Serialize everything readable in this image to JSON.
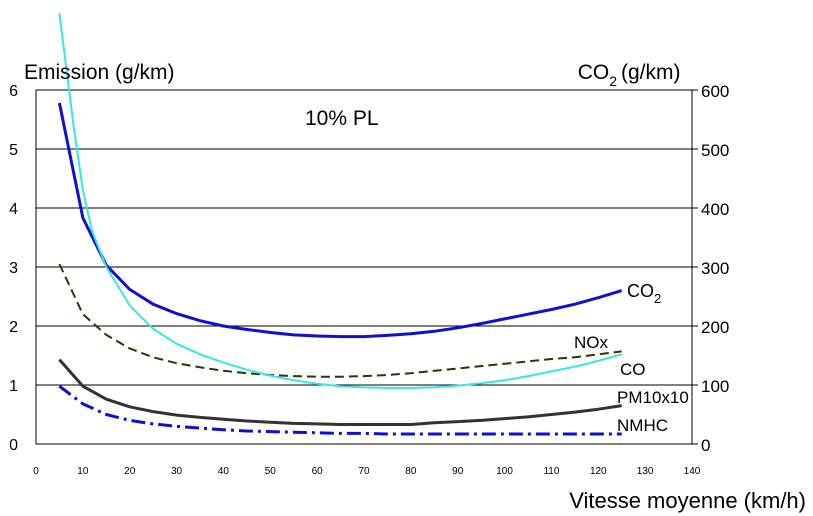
{
  "chart_data": {
    "type": "line",
    "title": "10% PL",
    "xlabel": "Vitesse moyenne (km/h)",
    "ylabel": "Emission (g/km)",
    "y2label_main": "CO",
    "y2label_sub": "2",
    "y2label_rest": "(g/km)",
    "xlim": [
      0,
      140
    ],
    "ylim": [
      0,
      6
    ],
    "y2lim": [
      0,
      600
    ],
    "xticks": [
      0,
      10,
      20,
      30,
      40,
      50,
      60,
      70,
      80,
      90,
      100,
      110,
      120,
      130,
      140
    ],
    "yticks": [
      0,
      1,
      2,
      3,
      4,
      5,
      6
    ],
    "y2ticks": [
      0,
      100,
      200,
      300,
      400,
      500,
      600
    ],
    "grid": "horizontal",
    "series": [
      {
        "name": "CO2",
        "axis": "y2",
        "color": "#1010d0",
        "dash": "solid",
        "x": [
          5,
          10,
          15,
          20,
          25,
          30,
          35,
          40,
          45,
          50,
          55,
          60,
          65,
          70,
          75,
          80,
          85,
          90,
          95,
          100,
          105,
          110,
          115,
          120,
          125
        ],
        "values": [
          578,
          383,
          303,
          262,
          237,
          221,
          209,
          200,
          194,
          189,
          185,
          183,
          182,
          182,
          184,
          187,
          191,
          197,
          204,
          212,
          220,
          228,
          237,
          248,
          260
        ]
      },
      {
        "name": "NOx",
        "axis": "y",
        "color": "#333300",
        "dash": "dashed",
        "x": [
          5,
          10,
          15,
          20,
          25,
          30,
          35,
          40,
          45,
          50,
          55,
          60,
          65,
          70,
          75,
          80,
          85,
          90,
          95,
          100,
          105,
          110,
          115,
          120,
          125
        ],
        "values": [
          3.05,
          2.2,
          1.85,
          1.62,
          1.47,
          1.37,
          1.3,
          1.24,
          1.2,
          1.17,
          1.15,
          1.14,
          1.14,
          1.15,
          1.17,
          1.2,
          1.24,
          1.28,
          1.32,
          1.36,
          1.4,
          1.44,
          1.47,
          1.52,
          1.57
        ]
      },
      {
        "name": "CO",
        "axis": "y",
        "color": "#33e8e8",
        "dash": "solid",
        "x": [
          5,
          8,
          10,
          12,
          15,
          20,
          25,
          30,
          35,
          40,
          45,
          50,
          55,
          60,
          65,
          70,
          75,
          80,
          85,
          90,
          95,
          100,
          105,
          110,
          115,
          120,
          125
        ],
        "values": [
          7.3,
          5.4,
          4.3,
          3.6,
          3.0,
          2.35,
          1.95,
          1.7,
          1.52,
          1.38,
          1.26,
          1.16,
          1.08,
          1.02,
          0.98,
          0.96,
          0.95,
          0.95,
          0.96,
          0.99,
          1.03,
          1.08,
          1.15,
          1.23,
          1.31,
          1.41,
          1.52
        ]
      },
      {
        "name": "PM10x10",
        "axis": "y",
        "color": "#333333",
        "dash": "solid",
        "x": [
          5,
          10,
          15,
          20,
          25,
          30,
          35,
          40,
          45,
          50,
          55,
          60,
          65,
          70,
          75,
          80,
          85,
          90,
          95,
          100,
          105,
          110,
          115,
          120,
          125
        ],
        "values": [
          1.43,
          0.98,
          0.76,
          0.63,
          0.55,
          0.49,
          0.45,
          0.42,
          0.39,
          0.37,
          0.35,
          0.34,
          0.33,
          0.33,
          0.33,
          0.33,
          0.36,
          0.38,
          0.4,
          0.43,
          0.46,
          0.5,
          0.54,
          0.59,
          0.65
        ]
      },
      {
        "name": "NMHC",
        "axis": "y",
        "color": "#1010d0",
        "dash": "dashdot",
        "x": [
          5,
          10,
          15,
          20,
          25,
          30,
          35,
          40,
          45,
          50,
          55,
          60,
          65,
          70,
          75,
          80,
          85,
          90,
          95,
          100,
          105,
          110,
          115,
          120,
          125
        ],
        "values": [
          0.98,
          0.68,
          0.5,
          0.4,
          0.34,
          0.3,
          0.27,
          0.24,
          0.22,
          0.21,
          0.2,
          0.19,
          0.18,
          0.18,
          0.17,
          0.17,
          0.17,
          0.17,
          0.17,
          0.17,
          0.17,
          0.17,
          0.17,
          0.17,
          0.17
        ]
      }
    ]
  }
}
